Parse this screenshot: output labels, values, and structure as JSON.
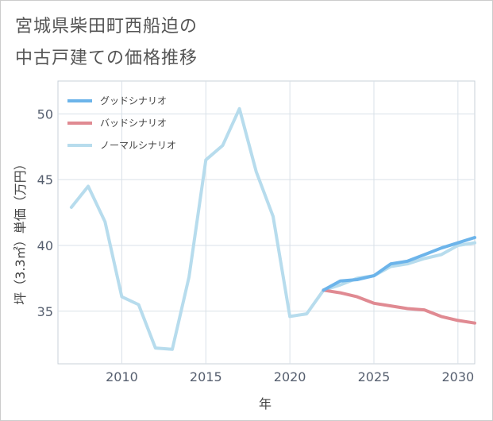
{
  "title_lines": [
    "宮城県柴田町西船迫の",
    "中古戸建ての価格推移"
  ],
  "chart_data": {
    "type": "line",
    "xlabel": "年",
    "ylabel": "坪（3.3㎡）単価（万円）",
    "xlim": [
      2006.2,
      2031
    ],
    "ylim": [
      31,
      52.5
    ],
    "xticks": [
      2010,
      2015,
      2020,
      2025,
      2030
    ],
    "yticks": [
      35,
      40,
      45,
      50
    ],
    "grid": true,
    "legend_position": "top-left",
    "series": [
      {
        "name": "グッドシナリオ",
        "color": "#6cb4ea",
        "x": [
          2022,
          2023,
          2024,
          2025,
          2026,
          2027,
          2028,
          2029,
          2030,
          2031
        ],
        "y": [
          36.6,
          37.3,
          37.4,
          37.7,
          38.6,
          38.8,
          39.3,
          39.8,
          40.2,
          40.6
        ]
      },
      {
        "name": "バッドシナリオ",
        "color": "#e08a92",
        "x": [
          2022,
          2023,
          2024,
          2025,
          2026,
          2027,
          2028,
          2029,
          2030,
          2031
        ],
        "y": [
          36.6,
          36.4,
          36.1,
          35.6,
          35.4,
          35.2,
          35.1,
          34.6,
          34.3,
          34.1
        ]
      },
      {
        "name": "ノーマルシナリオ",
        "color": "#b7dced",
        "x": [
          2007,
          2008,
          2009,
          2010,
          2011,
          2012,
          2013,
          2014,
          2015,
          2016,
          2017,
          2018,
          2019,
          2020,
          2021,
          2022,
          2023,
          2024,
          2025,
          2026,
          2027,
          2028,
          2029,
          2030,
          2031
        ],
        "y": [
          42.9,
          44.5,
          41.8,
          36.1,
          35.5,
          32.2,
          32.1,
          37.6,
          46.5,
          47.6,
          50.4,
          45.6,
          42.2,
          34.6,
          34.8,
          36.6,
          37.0,
          37.5,
          37.7,
          38.4,
          38.6,
          39.0,
          39.3,
          40.0,
          40.2
        ]
      }
    ]
  }
}
